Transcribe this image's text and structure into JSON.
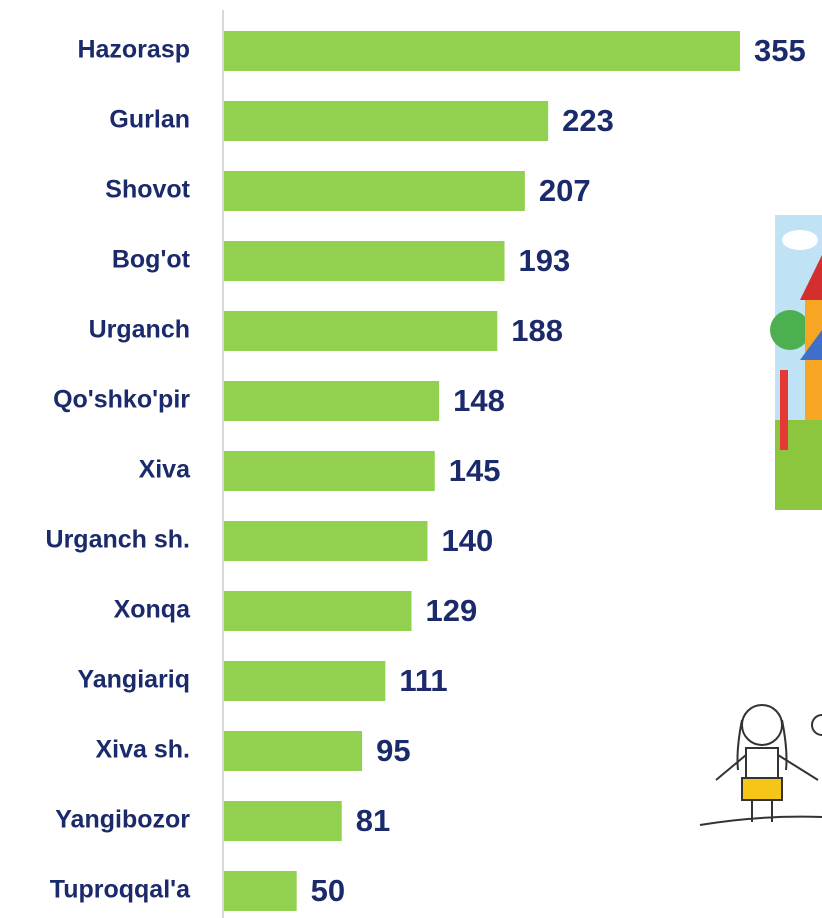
{
  "chart_data": {
    "type": "bar",
    "categories": [
      "Hazorasp",
      "Gurlan",
      "Shovot",
      "Bog'ot",
      "Urganch",
      "Qo'shko'pir",
      "Xiva",
      "Urganch sh.",
      "Xonqa",
      "Yangiariq",
      "Xiva sh.",
      "Yangibozor",
      "Tuproqqal'a"
    ],
    "values": [
      355,
      223,
      207,
      193,
      188,
      148,
      145,
      140,
      129,
      111,
      95,
      81,
      50
    ],
    "color": "#92d050"
  }
}
